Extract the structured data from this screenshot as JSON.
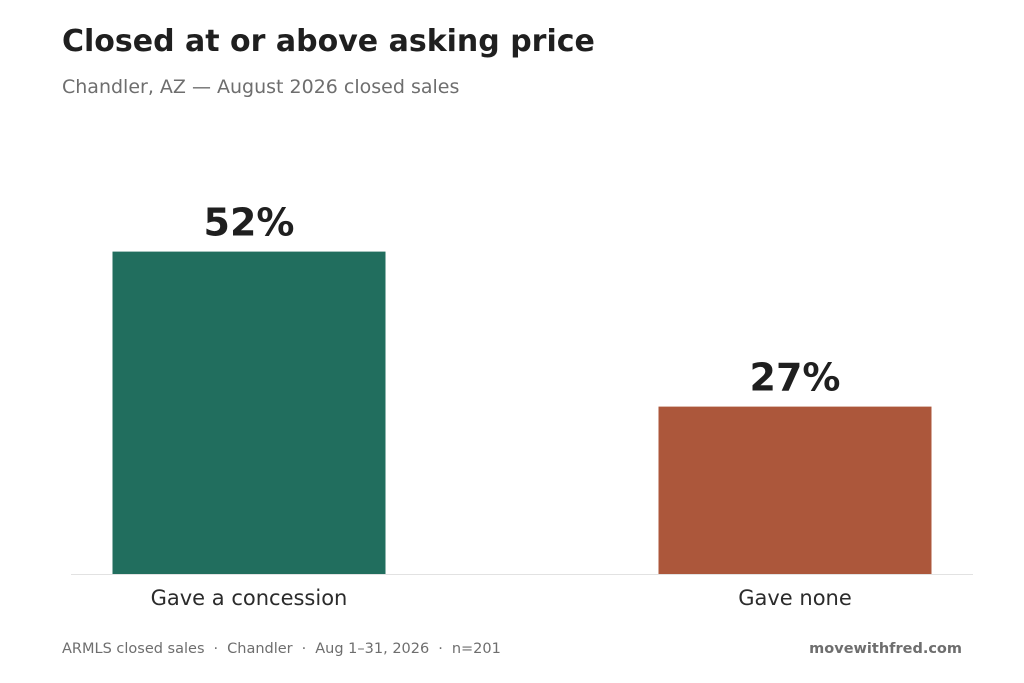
{
  "chart_data": {
    "type": "bar",
    "title": "Closed at or above asking price",
    "subtitle": "Chandler, AZ — August 2026 closed sales",
    "categories": [
      "Gave a concession",
      "Gave none"
    ],
    "values": [
      52,
      27
    ],
    "value_labels": [
      "52%",
      "27%"
    ],
    "bar_colors": [
      "#216e5e",
      "#ac573b"
    ],
    "ylim": [
      0,
      60
    ],
    "grid": false,
    "xlabel": "",
    "ylabel": ""
  },
  "footer": {
    "source_parts": [
      "ARMLS closed sales",
      "Chandler",
      "Aug 1–31, 2026",
      "n=201"
    ],
    "separator": "·",
    "brand": "movewithfred.com"
  }
}
